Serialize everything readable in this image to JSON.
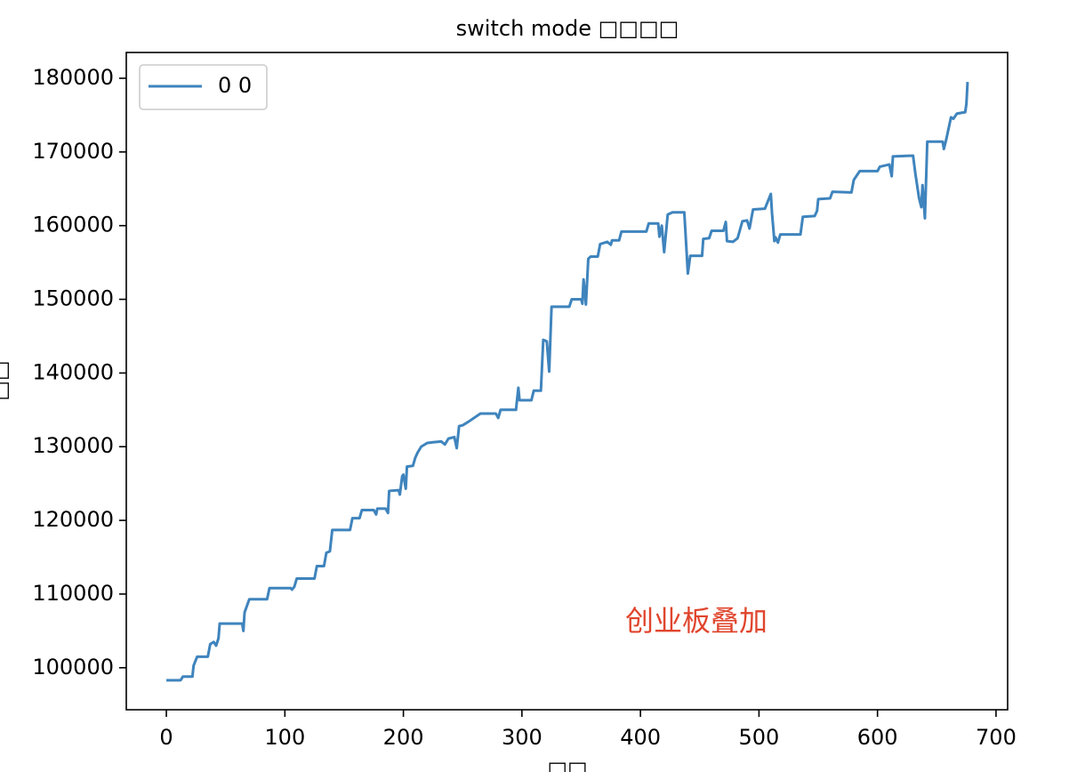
{
  "chart_data": {
    "type": "line",
    "title": "switch mode □□□□",
    "xlabel": "□□",
    "ylabel": "□□",
    "annotation": "创业板叠加",
    "annotation_color": "#e0452d",
    "legend": "upper left",
    "xlim": [
      -33.8,
      709.8
    ],
    "ylim": [
      94300,
      183500
    ],
    "xticks": [
      0,
      100,
      200,
      300,
      400,
      500,
      600,
      700
    ],
    "yticks": [
      100000,
      110000,
      120000,
      130000,
      140000,
      150000,
      160000,
      170000,
      180000
    ],
    "x": [
      0,
      12,
      14,
      22,
      23,
      26,
      35,
      37,
      40,
      42,
      44,
      45,
      64,
      65,
      66,
      70,
      85,
      87,
      105,
      106,
      108,
      110,
      125,
      127,
      133,
      135,
      138,
      140,
      155,
      157,
      163,
      165,
      175,
      177,
      178,
      185,
      187,
      188,
      196,
      197,
      199,
      200,
      202,
      203,
      208,
      210,
      212,
      215,
      220,
      225,
      232,
      235,
      238,
      243,
      245,
      247,
      250,
      255,
      265,
      278,
      280,
      282,
      295,
      297,
      298,
      308,
      310,
      316,
      318,
      321,
      323,
      325,
      340,
      342,
      350,
      351,
      352,
      354,
      356,
      358,
      364,
      366,
      372,
      375,
      376,
      382,
      384,
      405,
      407,
      415,
      416,
      418,
      420,
      423,
      427,
      437,
      440,
      442,
      452,
      453,
      458,
      460,
      470,
      472,
      473,
      478,
      482,
      486,
      490,
      492,
      495,
      505,
      510,
      511,
      513,
      514,
      516,
      518,
      535,
      537,
      547,
      549,
      550,
      560,
      562,
      578,
      580,
      585,
      600,
      602,
      610,
      612,
      613,
      630,
      632,
      635,
      637,
      638,
      640,
      642,
      655,
      656,
      658,
      662,
      664,
      667,
      674,
      675,
      676
    ],
    "series": [
      {
        "name": "0 0",
        "color": "#3f84bd",
        "values": [
          98300,
          98300,
          98800,
          98800,
          100300,
          101500,
          101500,
          103200,
          103500,
          103000,
          104000,
          106000,
          106000,
          105000,
          107500,
          109300,
          109300,
          110800,
          110800,
          110600,
          111000,
          112100,
          112100,
          113800,
          113800,
          115600,
          115800,
          118700,
          118700,
          120300,
          120300,
          121400,
          121400,
          120800,
          121600,
          121600,
          121000,
          124000,
          124100,
          123500,
          126000,
          126200,
          124300,
          127300,
          127400,
          128500,
          129200,
          130000,
          130500,
          130600,
          130700,
          130300,
          131100,
          131300,
          129800,
          132800,
          132900,
          133400,
          134500,
          134500,
          133900,
          135000,
          135000,
          138000,
          136300,
          136300,
          137600,
          137600,
          144500,
          144300,
          140200,
          149000,
          149000,
          150000,
          150000,
          149400,
          152700,
          149300,
          155500,
          155800,
          155800,
          157500,
          157800,
          157400,
          158000,
          158000,
          159200,
          159200,
          160300,
          160300,
          158500,
          160000,
          156400,
          161500,
          161800,
          161800,
          153500,
          155900,
          155900,
          158200,
          158300,
          159300,
          159300,
          160500,
          157900,
          157800,
          158300,
          160600,
          160700,
          159600,
          162200,
          162300,
          164300,
          161700,
          157900,
          158400,
          157700,
          158800,
          158800,
          161200,
          161300,
          162000,
          163600,
          163700,
          164600,
          164500,
          166200,
          167400,
          167400,
          168000,
          168300,
          166700,
          169400,
          169500,
          167000,
          163800,
          162500,
          165500,
          161000,
          171400,
          171400,
          170400,
          171700,
          174700,
          174500,
          175200,
          175400,
          176500,
          179500
        ]
      }
    ]
  }
}
